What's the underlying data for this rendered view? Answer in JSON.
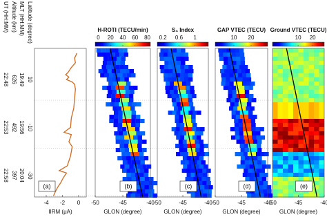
{
  "chart_data": [
    {
      "type": "line",
      "y_labels": [
        "Latitude (degree)",
        "MLT (HH:MM)",
        "Altitude (km)",
        "UT (HH:MM)"
      ],
      "ylim": [
        -39,
        23
      ],
      "yticks": [
        10,
        -10,
        -30
      ],
      "y_tick_rows": [
        [
          "19:49",
          "19:56",
          "20:04"
        ],
        [
          "626",
          "492",
          "397"
        ],
        [
          "22:48",
          "22:53",
          "22:58"
        ]
      ],
      "xlabel": "IIRM (μA)",
      "panel_label": "(a)",
      "xlim": [
        -5.45,
        0.94
      ],
      "xticks": [
        -4,
        -2,
        0
      ],
      "color": "#d2691e",
      "x": [
        -0.2,
        -0.5,
        -0.4,
        -0.9,
        -1.3,
        -1.6,
        -1.2,
        -1.5,
        -0.8,
        -0.5,
        -0.4,
        -0.5,
        -0.6,
        -0.9,
        -1.0,
        -1.8,
        -0.9,
        -1.2,
        -0.8,
        -1.0,
        -1.4,
        -2.4,
        -1.5,
        -1.9,
        -2.2,
        -2.6,
        -2.9,
        -3.1
      ],
      "values": [
        21,
        19,
        17,
        15,
        13,
        12,
        11,
        10,
        9,
        8,
        6,
        2,
        -2,
        -6,
        -10,
        -12,
        -13,
        -16,
        -18,
        -22,
        -26,
        -28,
        -29,
        -31,
        -33,
        -35,
        -37,
        -38.5
      ]
    },
    {
      "type": "heatmap",
      "title": "H-ROTI (TECU/min)",
      "clim": [
        -5,
        85
      ],
      "colorbar_ticks": [
        0,
        20,
        40,
        60,
        80
      ],
      "xlim": [
        -50,
        -40
      ],
      "xticks": [
        -50,
        -45,
        -40
      ],
      "xlabel": "GLON (degree)",
      "panel_label": "(b)"
    },
    {
      "type": "heatmap",
      "title": "S₄ Index",
      "clim": [
        0.06,
        1.33
      ],
      "colorbar_ticks": [
        0.2,
        0.6,
        1
      ],
      "xlim": [
        -50,
        -40
      ],
      "xticks": [
        -50,
        -45,
        -40
      ],
      "xlabel": "GLON (degree)",
      "panel_label": "(c)"
    },
    {
      "type": "heatmap",
      "title": "GAP VTEC (TECU)",
      "clim": [
        -0.8,
        29.6
      ],
      "colorbar_ticks": [
        10,
        20
      ],
      "xlim": [
        -50,
        -40
      ],
      "xticks": [
        -50,
        -45,
        -40
      ],
      "xlabel": "GLON (degree)",
      "panel_label": "(d)"
    },
    {
      "type": "heatmap",
      "title": "Ground VTEC (TECU)",
      "clim": [
        -7.6,
        28
      ],
      "colorbar_ticks": [
        10,
        20
      ],
      "xlim": [
        -50,
        -40
      ],
      "xticks": [
        -50,
        -45,
        -40
      ],
      "xlabel": "GLON (degree)",
      "panel_label": "(e)"
    }
  ]
}
